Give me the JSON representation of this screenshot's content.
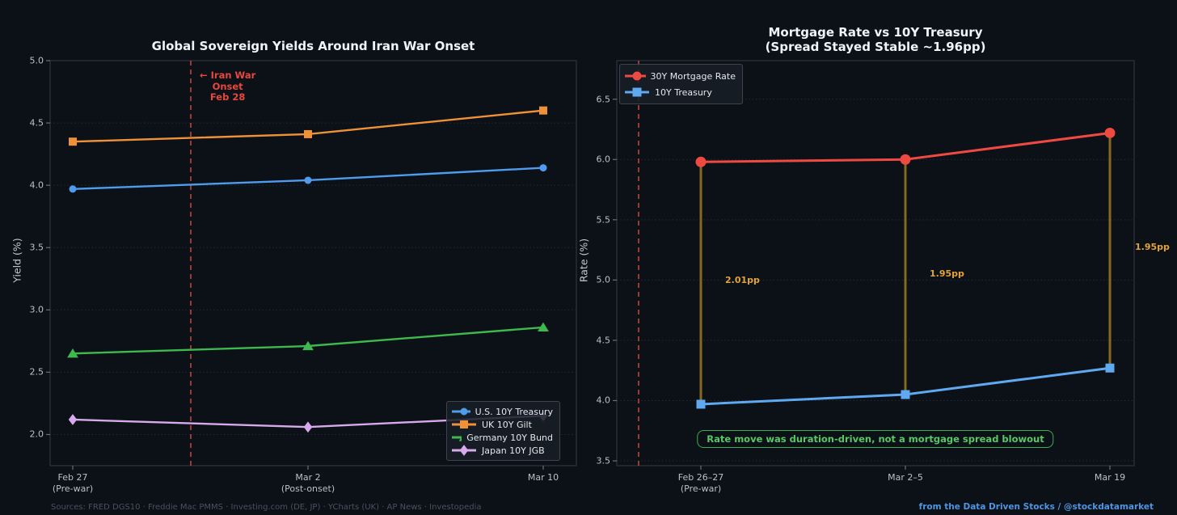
{
  "page": {
    "background": "#0c1017"
  },
  "footer": {
    "sources": "Sources: FRED DGS10 · Freddie Mac PMMS · Investing.com (DE, JP) · YCharts (UK) · AP News · Investopedia",
    "credit": "from the Data Driven Stocks / @stockdatamarket"
  },
  "chart_data": [
    {
      "type": "line",
      "title": "Global Sovereign Yields Around Iran War Onset",
      "ylabel": "Yield (%)",
      "categories": [
        "Feb 27\n(Pre-war)",
        "Mar 2\n(Post-onset)",
        "Mar 10"
      ],
      "yticks": [
        "2.0",
        "2.5",
        "3.0",
        "3.5",
        "4.0",
        "4.5",
        "5.0"
      ],
      "ylim": [
        1.75,
        5.0
      ],
      "grid": "horizontal-dotted",
      "legend_position": "lower right",
      "series": [
        {
          "name": "U.S. 10Y Treasury",
          "color": "#4f9bed",
          "marker": "circle",
          "values": [
            3.97,
            4.04,
            4.14
          ]
        },
        {
          "name": "UK 10Y Gilt",
          "color": "#ee9139",
          "marker": "square",
          "values": [
            4.35,
            4.41,
            4.6
          ]
        },
        {
          "name": "Germany 10Y Bund",
          "color": "#3eb94f",
          "marker": "triangle",
          "values": [
            2.65,
            2.71,
            2.86
          ]
        },
        {
          "name": "Japan 10Y JGB",
          "color": "#d9a9ed",
          "marker": "diamond",
          "values": [
            2.12,
            2.06,
            2.15
          ]
        }
      ],
      "event_line": {
        "label": "← Iran War\nOnset\nFeb 28",
        "color": "#e8483c",
        "position": "between Feb 27 and Mar 2"
      }
    },
    {
      "type": "line",
      "title": "Mortgage Rate vs 10Y Treasury\n(Spread Stayed Stable ~1.96pp)",
      "ylabel": "Rate (%)",
      "categories": [
        "Feb 26–27\n(Pre-war)",
        "Mar 2–5",
        "Mar 19"
      ],
      "yticks": [
        "3.5",
        "4.0",
        "4.5",
        "5.0",
        "5.5",
        "6.0",
        "6.5"
      ],
      "ylim": [
        3.46,
        6.82
      ],
      "grid": "horizontal-dotted",
      "legend_position": "upper left",
      "series": [
        {
          "name": "30Y Mortgage Rate",
          "color": "#ef4a41",
          "marker": "circle",
          "values": [
            5.98,
            6.0,
            6.22
          ]
        },
        {
          "name": "10Y Treasury",
          "color": "#5ea9f0",
          "marker": "square",
          "values": [
            3.97,
            4.05,
            4.27
          ]
        }
      ],
      "spread": {
        "color": "#85691f",
        "label_color": "#e2a33c",
        "labels": [
          "2.01pp",
          "1.95pp",
          "1.95pp"
        ]
      },
      "note": {
        "text": "Rate move was duration-driven, not a mortgage spread blowout",
        "color": "#56c965"
      }
    }
  ]
}
